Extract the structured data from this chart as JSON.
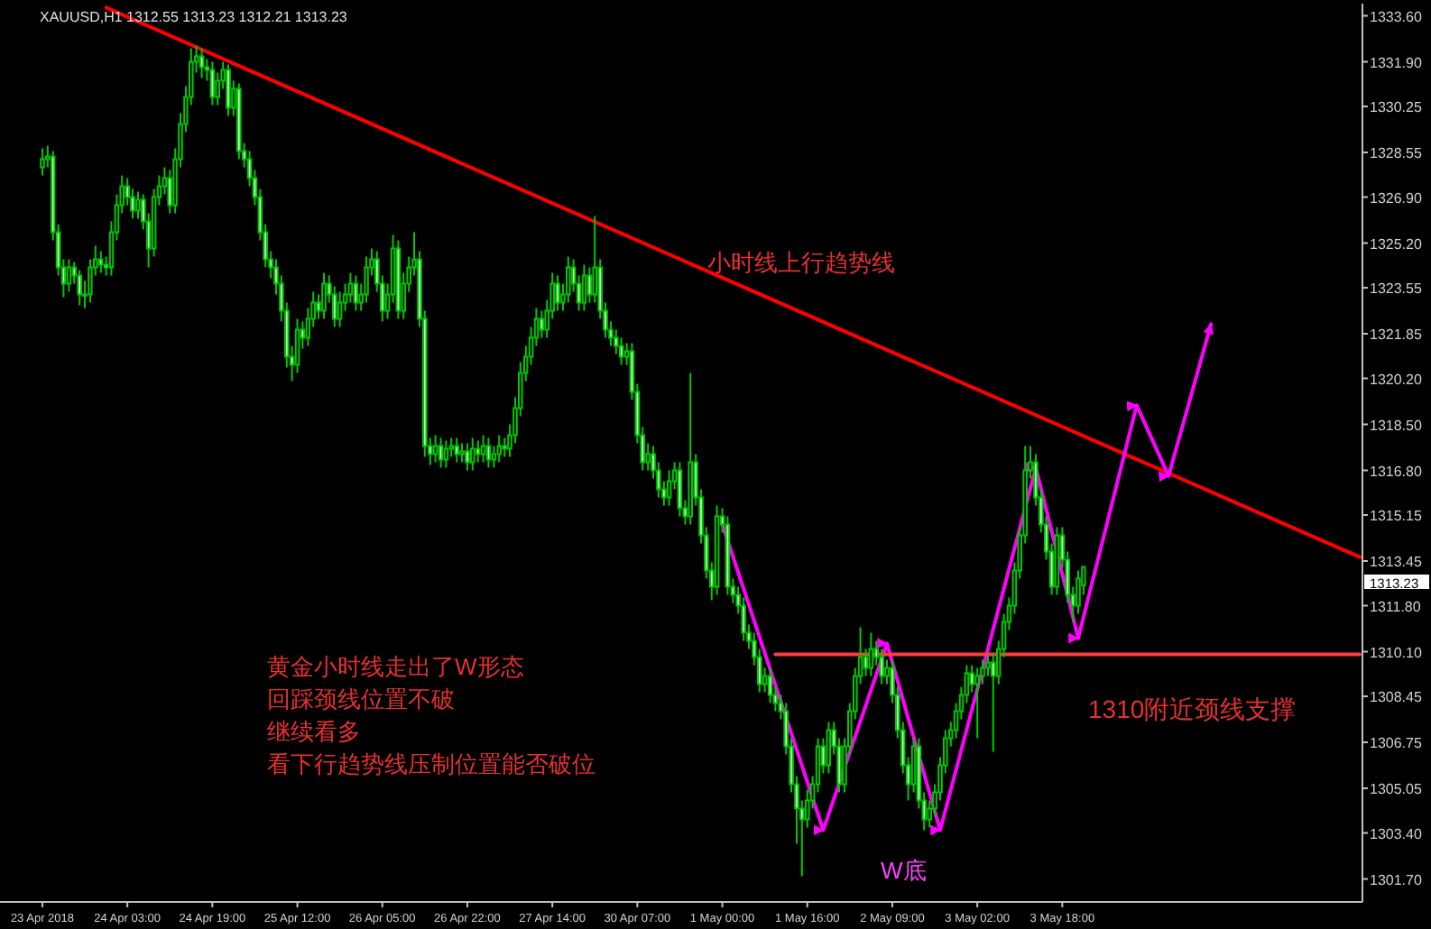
{
  "chart_data": {
    "type": "candlestick",
    "title": "XAUUSD,H1  1312.55 1313.23 1312.21 1313.23",
    "categories": [
      "23 Apr 2018",
      null,
      null,
      null,
      null,
      null,
      null,
      null,
      null,
      null,
      null,
      null,
      null,
      null,
      null,
      null,
      "24 Apr 03:00",
      null,
      null,
      null,
      null,
      null,
      null,
      null,
      null,
      null,
      null,
      null,
      null,
      null,
      null,
      null,
      "24 Apr 19:00",
      null,
      null,
      null,
      null,
      null,
      null,
      null,
      null,
      null,
      null,
      null,
      null,
      null,
      null,
      null,
      "25 Apr 12:00",
      null,
      null,
      null,
      null,
      null,
      null,
      null,
      null,
      null,
      null,
      null,
      null,
      null,
      null,
      null,
      "26 Apr 05:00",
      null,
      null,
      null,
      null,
      null,
      null,
      null,
      null,
      null,
      null,
      null,
      null,
      null,
      null,
      null,
      "26 Apr 22:00",
      null,
      null,
      null,
      null,
      null,
      null,
      null,
      null,
      null,
      null,
      null,
      null,
      null,
      null,
      null,
      "27 Apr 14:00",
      null,
      null,
      null,
      null,
      null,
      null,
      null,
      null,
      null,
      null,
      null,
      null,
      null,
      null,
      null,
      "30 Apr 07:00",
      null,
      null,
      null,
      null,
      null,
      null,
      null,
      null,
      null,
      null,
      null,
      null,
      null,
      null,
      null,
      "1 May 00:00",
      null,
      null,
      null,
      null,
      null,
      null,
      null,
      null,
      null,
      null,
      null,
      null,
      null,
      null,
      null,
      "1 May 16:00",
      null,
      null,
      null,
      null,
      null,
      null,
      null,
      null,
      null,
      null,
      null,
      null,
      null,
      null,
      null,
      "2 May 09:00",
      null,
      null,
      null,
      null,
      null,
      null,
      null,
      null,
      null,
      null,
      null,
      null,
      null,
      null,
      null,
      "3 May 02:00",
      null,
      null,
      null,
      null,
      null,
      null,
      null,
      null,
      null,
      null,
      null,
      null,
      null,
      null,
      null,
      "3 May 18:00",
      null,
      null,
      null,
      null,
      null,
      null,
      null,
      null,
      null,
      null,
      null,
      null,
      null,
      null,
      null,
      null,
      null,
      null,
      null,
      null,
      null,
      null,
      null,
      null,
      null,
      null,
      null,
      null,
      null,
      null,
      null,
      null,
      null,
      null,
      null,
      null,
      null,
      null,
      null,
      null,
      null,
      null,
      null,
      null,
      null,
      null,
      null,
      null,
      null,
      null,
      null,
      null,
      null,
      null,
      null,
      null
    ],
    "ylim": [
      1300.85,
      1334.05
    ],
    "yticks": [
      {
        "value": 1333.6,
        "label": "1333.60"
      },
      {
        "value": 1331.9,
        "label": "1331.90"
      },
      {
        "value": 1330.25,
        "label": "1330.25"
      },
      {
        "value": 1328.55,
        "label": "1328.55"
      },
      {
        "value": 1326.9,
        "label": "1326.90"
      },
      {
        "value": 1325.2,
        "label": "1325.20"
      },
      {
        "value": 1323.55,
        "label": "1323.55"
      },
      {
        "value": 1321.85,
        "label": "1321.85"
      },
      {
        "value": 1320.2,
        "label": "1320.20"
      },
      {
        "value": 1318.5,
        "label": "1318.50"
      },
      {
        "value": 1316.8,
        "label": "1316.80"
      },
      {
        "value": 1315.15,
        "label": "1315.15"
      },
      {
        "value": 1313.45,
        "label": "1313.45"
      },
      {
        "value": 1311.8,
        "label": "1311.80"
      },
      {
        "value": 1310.1,
        "label": "1310.10"
      },
      {
        "value": 1308.45,
        "label": "1308.45"
      },
      {
        "value": 1306.75,
        "label": "1306.75"
      },
      {
        "value": 1305.05,
        "label": "1305.05"
      },
      {
        "value": 1303.4,
        "label": "1303.40"
      },
      {
        "value": 1301.7,
        "label": "1301.70"
      }
    ],
    "ohlc": [
      [
        1328.0,
        1328.7,
        1327.7,
        1328.3
      ],
      [
        1328.3,
        1328.8,
        1328.0,
        1328.4
      ],
      [
        1328.4,
        1328.6,
        1325.3,
        1325.6
      ],
      [
        1325.6,
        1325.9,
        1324.0,
        1324.3
      ],
      [
        1324.3,
        1324.6,
        1323.2,
        1323.7
      ],
      [
        1323.7,
        1324.6,
        1323.4,
        1324.3
      ],
      [
        1324.3,
        1324.5,
        1323.7,
        1324.0
      ],
      [
        1324.0,
        1324.2,
        1322.9,
        1323.3
      ],
      [
        1323.3,
        1323.8,
        1322.8,
        1323.3
      ],
      [
        1323.3,
        1324.6,
        1323.0,
        1324.3
      ],
      [
        1324.3,
        1325.1,
        1324.0,
        1324.6
      ],
      [
        1324.6,
        1324.9,
        1324.1,
        1324.4
      ],
      [
        1324.4,
        1324.7,
        1324.0,
        1324.3
      ],
      [
        1324.3,
        1326.0,
        1324.0,
        1325.6
      ],
      [
        1325.6,
        1327.0,
        1325.3,
        1326.6
      ],
      [
        1326.6,
        1327.7,
        1326.3,
        1327.3
      ],
      [
        1327.3,
        1327.6,
        1326.6,
        1326.9
      ],
      [
        1326.9,
        1327.2,
        1326.1,
        1326.4
      ],
      [
        1326.4,
        1327.1,
        1326.1,
        1326.8
      ],
      [
        1326.8,
        1327.0,
        1325.7,
        1326.0
      ],
      [
        1326.0,
        1326.3,
        1324.3,
        1325.0
      ],
      [
        1325.0,
        1327.2,
        1324.7,
        1326.9
      ],
      [
        1326.9,
        1327.7,
        1326.6,
        1327.3
      ],
      [
        1327.3,
        1328.0,
        1327.0,
        1327.6
      ],
      [
        1327.6,
        1327.9,
        1326.3,
        1326.6
      ],
      [
        1326.6,
        1328.7,
        1326.3,
        1328.3
      ],
      [
        1328.3,
        1330.0,
        1328.0,
        1329.6
      ],
      [
        1329.6,
        1331.0,
        1329.3,
        1330.6
      ],
      [
        1330.6,
        1332.4,
        1330.3,
        1331.9
      ],
      [
        1331.9,
        1332.5,
        1331.5,
        1332.1
      ],
      [
        1332.1,
        1332.4,
        1331.3,
        1331.7
      ],
      [
        1331.7,
        1332.0,
        1331.2,
        1331.6
      ],
      [
        1331.6,
        1331.9,
        1330.3,
        1330.6
      ],
      [
        1330.6,
        1331.5,
        1330.3,
        1331.2
      ],
      [
        1331.2,
        1331.9,
        1330.9,
        1331.6
      ],
      [
        1331.6,
        1331.8,
        1329.9,
        1330.2
      ],
      [
        1330.2,
        1331.2,
        1329.9,
        1330.9
      ],
      [
        1330.9,
        1331.1,
        1328.3,
        1328.6
      ],
      [
        1328.6,
        1328.9,
        1328.0,
        1328.3
      ],
      [
        1328.3,
        1328.6,
        1327.3,
        1327.6
      ],
      [
        1327.6,
        1327.9,
        1326.6,
        1326.9
      ],
      [
        1326.9,
        1327.2,
        1325.3,
        1325.6
      ],
      [
        1325.6,
        1325.9,
        1324.3,
        1324.6
      ],
      [
        1324.6,
        1324.9,
        1323.9,
        1324.3
      ],
      [
        1324.3,
        1324.6,
        1323.3,
        1323.7
      ],
      [
        1323.7,
        1324.0,
        1322.3,
        1322.7
      ],
      [
        1322.7,
        1323.0,
        1320.6,
        1321.0
      ],
      [
        1321.0,
        1321.4,
        1320.1,
        1320.7
      ],
      [
        1320.7,
        1322.4,
        1320.4,
        1322.0
      ],
      [
        1322.0,
        1322.3,
        1321.3,
        1321.7
      ],
      [
        1321.7,
        1322.8,
        1321.4,
        1322.4
      ],
      [
        1322.4,
        1323.4,
        1322.1,
        1323.0
      ],
      [
        1323.0,
        1323.3,
        1322.4,
        1322.7
      ],
      [
        1322.7,
        1324.1,
        1322.4,
        1323.7
      ],
      [
        1323.7,
        1324.0,
        1323.0,
        1323.3
      ],
      [
        1323.3,
        1323.6,
        1322.1,
        1322.4
      ],
      [
        1322.4,
        1323.4,
        1322.1,
        1323.0
      ],
      [
        1323.0,
        1323.7,
        1322.7,
        1323.3
      ],
      [
        1323.3,
        1324.1,
        1323.0,
        1323.7
      ],
      [
        1323.7,
        1324.0,
        1322.7,
        1323.0
      ],
      [
        1323.0,
        1323.7,
        1322.7,
        1323.3
      ],
      [
        1323.3,
        1324.7,
        1323.0,
        1324.3
      ],
      [
        1324.3,
        1325.0,
        1324.0,
        1324.6
      ],
      [
        1324.6,
        1324.9,
        1323.4,
        1323.7
      ],
      [
        1323.7,
        1324.0,
        1322.3,
        1322.7
      ],
      [
        1322.7,
        1323.7,
        1322.4,
        1323.3
      ],
      [
        1323.3,
        1325.5,
        1323.0,
        1325.0
      ],
      [
        1325.0,
        1325.3,
        1322.4,
        1322.7
      ],
      [
        1322.7,
        1324.1,
        1322.4,
        1323.7
      ],
      [
        1323.7,
        1324.7,
        1323.4,
        1324.3
      ],
      [
        1324.3,
        1325.6,
        1324.0,
        1324.6
      ],
      [
        1324.6,
        1324.9,
        1322.1,
        1322.4
      ],
      [
        1322.4,
        1322.7,
        1317.3,
        1317.7
      ],
      [
        1317.7,
        1318.0,
        1317.0,
        1317.4
      ],
      [
        1317.4,
        1318.1,
        1317.1,
        1317.7
      ],
      [
        1317.7,
        1318.0,
        1316.9,
        1317.2
      ],
      [
        1317.2,
        1317.9,
        1316.9,
        1317.6
      ],
      [
        1317.6,
        1318.0,
        1317.3,
        1317.7
      ],
      [
        1317.7,
        1318.0,
        1317.1,
        1317.4
      ],
      [
        1317.4,
        1317.8,
        1317.1,
        1317.5
      ],
      [
        1317.5,
        1317.8,
        1316.8,
        1317.1
      ],
      [
        1317.1,
        1318.0,
        1316.8,
        1317.6
      ],
      [
        1317.6,
        1317.9,
        1317.1,
        1317.4
      ],
      [
        1317.4,
        1318.1,
        1317.1,
        1317.7
      ],
      [
        1317.7,
        1318.0,
        1316.9,
        1317.2
      ],
      [
        1317.2,
        1317.7,
        1316.9,
        1317.4
      ],
      [
        1317.4,
        1318.1,
        1317.1,
        1317.7
      ],
      [
        1317.7,
        1318.0,
        1317.3,
        1317.6
      ],
      [
        1317.6,
        1318.5,
        1317.3,
        1318.1
      ],
      [
        1318.1,
        1319.5,
        1317.8,
        1319.1
      ],
      [
        1319.1,
        1320.8,
        1318.8,
        1320.4
      ],
      [
        1320.4,
        1321.4,
        1320.1,
        1321.0
      ],
      [
        1321.0,
        1322.1,
        1320.7,
        1321.7
      ],
      [
        1321.7,
        1322.8,
        1321.4,
        1322.4
      ],
      [
        1322.4,
        1322.7,
        1321.7,
        1322.0
      ],
      [
        1322.0,
        1323.1,
        1321.7,
        1322.7
      ],
      [
        1322.7,
        1324.1,
        1322.4,
        1323.7
      ],
      [
        1323.7,
        1324.0,
        1322.7,
        1323.0
      ],
      [
        1323.0,
        1323.7,
        1322.7,
        1323.3
      ],
      [
        1323.3,
        1324.7,
        1323.0,
        1324.3
      ],
      [
        1324.3,
        1324.6,
        1323.4,
        1323.7
      ],
      [
        1323.7,
        1324.0,
        1322.7,
        1323.0
      ],
      [
        1323.0,
        1324.4,
        1322.7,
        1324.0
      ],
      [
        1324.0,
        1324.3,
        1323.0,
        1323.3
      ],
      [
        1323.3,
        1326.2,
        1323.0,
        1324.3
      ],
      [
        1324.3,
        1324.6,
        1322.4,
        1322.7
      ],
      [
        1322.7,
        1323.0,
        1321.7,
        1322.0
      ],
      [
        1322.0,
        1322.3,
        1321.4,
        1321.7
      ],
      [
        1321.7,
        1322.0,
        1321.1,
        1321.4
      ],
      [
        1321.4,
        1321.7,
        1320.7,
        1321.0
      ],
      [
        1321.0,
        1321.5,
        1320.7,
        1321.2
      ],
      [
        1321.2,
        1321.5,
        1319.4,
        1319.7
      ],
      [
        1319.7,
        1320.0,
        1317.8,
        1318.1
      ],
      [
        1318.1,
        1318.4,
        1316.8,
        1317.1
      ],
      [
        1317.1,
        1317.8,
        1316.8,
        1317.4
      ],
      [
        1317.4,
        1317.7,
        1316.5,
        1316.8
      ],
      [
        1316.8,
        1317.1,
        1315.8,
        1316.1
      ],
      [
        1316.1,
        1316.4,
        1315.5,
        1315.8
      ],
      [
        1315.8,
        1316.8,
        1315.5,
        1316.4
      ],
      [
        1316.4,
        1317.1,
        1316.1,
        1316.8
      ],
      [
        1316.8,
        1317.1,
        1315.1,
        1315.4
      ],
      [
        1315.4,
        1315.7,
        1314.8,
        1315.1
      ],
      [
        1315.1,
        1320.4,
        1314.8,
        1317.1
      ],
      [
        1317.1,
        1317.4,
        1315.5,
        1315.8
      ],
      [
        1315.8,
        1316.1,
        1314.1,
        1314.4
      ],
      [
        1314.4,
        1314.7,
        1312.8,
        1313.1
      ],
      [
        1313.1,
        1313.4,
        1312.0,
        1312.5
      ],
      [
        1312.5,
        1315.5,
        1312.2,
        1315.1
      ],
      [
        1315.1,
        1315.4,
        1314.5,
        1314.8
      ],
      [
        1314.8,
        1315.1,
        1312.2,
        1312.5
      ],
      [
        1312.5,
        1312.8,
        1311.9,
        1312.2
      ],
      [
        1312.2,
        1312.5,
        1311.5,
        1311.8
      ],
      [
        1311.8,
        1312.1,
        1310.5,
        1310.8
      ],
      [
        1310.8,
        1311.1,
        1310.2,
        1310.5
      ],
      [
        1310.5,
        1310.8,
        1309.6,
        1309.9
      ],
      [
        1309.9,
        1310.2,
        1308.6,
        1308.9
      ],
      [
        1308.9,
        1309.5,
        1308.6,
        1309.2
      ],
      [
        1309.2,
        1309.5,
        1308.2,
        1308.5
      ],
      [
        1308.5,
        1308.8,
        1307.9,
        1308.2
      ],
      [
        1308.2,
        1308.5,
        1307.6,
        1307.9
      ],
      [
        1307.9,
        1308.2,
        1306.3,
        1306.6
      ],
      [
        1306.6,
        1306.9,
        1304.9,
        1305.2
      ],
      [
        1305.2,
        1305.5,
        1303.0,
        1304.3
      ],
      [
        1304.3,
        1304.6,
        1301.8,
        1303.9
      ],
      [
        1303.9,
        1305.0,
        1303.6,
        1304.6
      ],
      [
        1304.6,
        1305.5,
        1304.3,
        1305.2
      ],
      [
        1305.2,
        1306.9,
        1304.9,
        1306.6
      ],
      [
        1306.6,
        1306.9,
        1305.6,
        1305.9
      ],
      [
        1305.9,
        1307.5,
        1305.6,
        1307.2
      ],
      [
        1307.2,
        1307.5,
        1306.3,
        1306.6
      ],
      [
        1306.6,
        1306.9,
        1304.9,
        1305.2
      ],
      [
        1305.2,
        1306.9,
        1304.9,
        1306.6
      ],
      [
        1306.6,
        1308.2,
        1306.3,
        1307.9
      ],
      [
        1307.9,
        1309.5,
        1307.6,
        1309.2
      ],
      [
        1309.2,
        1311.0,
        1308.9,
        1309.9
      ],
      [
        1309.9,
        1310.2,
        1309.2,
        1309.5
      ],
      [
        1309.5,
        1310.8,
        1309.2,
        1310.2
      ],
      [
        1310.2,
        1310.5,
        1309.6,
        1309.9
      ],
      [
        1309.9,
        1310.2,
        1308.9,
        1309.2
      ],
      [
        1309.2,
        1309.8,
        1308.9,
        1309.5
      ],
      [
        1309.5,
        1309.8,
        1308.2,
        1308.5
      ],
      [
        1308.5,
        1308.8,
        1306.9,
        1307.2
      ],
      [
        1307.2,
        1307.5,
        1305.6,
        1305.9
      ],
      [
        1305.9,
        1306.2,
        1304.6,
        1305.2
      ],
      [
        1305.2,
        1306.9,
        1304.9,
        1306.6
      ],
      [
        1306.6,
        1306.9,
        1304.3,
        1304.6
      ],
      [
        1304.6,
        1304.9,
        1303.5,
        1303.9
      ],
      [
        1303.9,
        1304.6,
        1303.6,
        1304.3
      ],
      [
        1304.3,
        1305.2,
        1304.0,
        1304.9
      ],
      [
        1304.9,
        1306.2,
        1304.6,
        1305.9
      ],
      [
        1305.9,
        1307.2,
        1305.6,
        1306.9
      ],
      [
        1306.9,
        1307.5,
        1306.6,
        1307.2
      ],
      [
        1307.2,
        1308.2,
        1306.9,
        1307.9
      ],
      [
        1307.9,
        1308.8,
        1307.6,
        1308.5
      ],
      [
        1308.5,
        1309.6,
        1308.2,
        1309.3
      ],
      [
        1309.3,
        1309.6,
        1308.6,
        1308.9
      ],
      [
        1308.9,
        1309.5,
        1306.9,
        1309.2
      ],
      [
        1309.2,
        1309.8,
        1308.9,
        1309.5
      ],
      [
        1309.5,
        1310.0,
        1309.2,
        1309.7
      ],
      [
        1309.7,
        1310.0,
        1306.4,
        1309.2
      ],
      [
        1309.2,
        1310.5,
        1308.9,
        1310.2
      ],
      [
        1310.2,
        1311.5,
        1309.9,
        1311.2
      ],
      [
        1311.2,
        1312.1,
        1310.9,
        1311.8
      ],
      [
        1311.8,
        1313.4,
        1311.5,
        1313.1
      ],
      [
        1313.1,
        1314.7,
        1312.8,
        1314.4
      ],
      [
        1314.4,
        1317.7,
        1314.1,
        1316.8
      ],
      [
        1316.8,
        1317.7,
        1316.5,
        1317.1
      ],
      [
        1317.1,
        1317.4,
        1315.5,
        1315.8
      ],
      [
        1315.8,
        1316.1,
        1314.5,
        1314.8
      ],
      [
        1314.8,
        1315.1,
        1313.5,
        1313.8
      ],
      [
        1313.8,
        1314.1,
        1312.2,
        1312.5
      ],
      [
        1312.5,
        1314.7,
        1312.2,
        1314.4
      ],
      [
        1314.4,
        1314.7,
        1313.2,
        1313.5
      ],
      [
        1313.5,
        1313.8,
        1311.9,
        1312.2
      ],
      [
        1312.2,
        1312.5,
        1311.2,
        1311.8
      ],
      [
        1311.8,
        1313.1,
        1311.5,
        1312.8
      ],
      [
        1312.55,
        1313.23,
        1312.21,
        1313.23
      ],
      null,
      null,
      null,
      null,
      null,
      null,
      null,
      null,
      null,
      null,
      null,
      null,
      null,
      null,
      null,
      null,
      null,
      null,
      null,
      null,
      null,
      null,
      null,
      null,
      null,
      null,
      null,
      null,
      null,
      null,
      null,
      null,
      null,
      null,
      null,
      null,
      null,
      null,
      null,
      null,
      null,
      null,
      null,
      null,
      null,
      null,
      null,
      null,
      null,
      null,
      null,
      null
    ],
    "series": [
      {
        "type": "line",
        "color": "#ff0000",
        "values": [
          null,
          null,
          null,
          null,
          null,
          null,
          null,
          null,
          null,
          null,
          null,
          null,
          1333.9,
          null,
          null,
          null,
          null,
          null,
          null,
          null,
          null,
          null,
          null,
          null,
          null,
          null,
          null,
          null,
          null,
          null,
          null,
          null,
          null,
          null,
          null,
          null,
          null,
          null,
          null,
          null,
          null,
          null,
          null,
          null,
          null,
          null,
          null,
          null,
          null,
          null,
          null,
          null,
          null,
          null,
          null,
          null,
          null,
          null,
          null,
          null,
          null,
          null,
          null,
          null,
          null,
          null,
          null,
          null,
          null,
          null,
          null,
          null,
          null,
          null,
          null,
          null,
          null,
          null,
          null,
          null,
          null,
          null,
          null,
          null,
          null,
          null,
          null,
          null,
          null,
          null,
          null,
          null,
          null,
          null,
          null,
          null,
          null,
          null,
          null,
          null,
          null,
          null,
          null,
          null,
          null,
          null,
          null,
          null,
          null,
          null,
          null,
          null,
          null,
          null,
          null,
          null,
          null,
          null,
          null,
          null,
          null,
          null,
          null,
          null,
          null,
          null,
          null,
          null,
          null,
          null,
          null,
          null,
          null,
          null,
          null,
          null,
          null,
          null,
          null,
          null,
          null,
          null,
          null,
          null,
          null,
          null,
          null,
          null,
          null,
          null,
          null,
          null,
          null,
          null,
          null,
          null,
          null,
          null,
          null,
          null,
          null,
          null,
          null,
          null,
          null,
          null,
          null,
          null,
          null,
          null,
          null,
          null,
          null,
          null,
          null,
          null,
          null,
          null,
          null,
          null,
          null,
          null,
          null,
          null,
          null,
          null,
          null,
          null,
          null,
          null,
          null,
          null,
          null,
          null,
          null,
          null,
          null,
          null,
          null,
          null,
          null,
          null,
          null,
          null,
          null,
          null,
          null,
          null,
          null,
          null,
          null,
          null,
          null,
          null,
          null,
          null,
          null,
          null,
          null,
          null,
          null,
          null,
          null,
          null,
          null,
          null,
          null,
          null,
          null,
          null,
          null,
          null,
          null,
          null,
          null,
          null,
          null,
          null,
          null,
          null,
          null,
          null,
          null,
          null,
          null,
          null,
          null,
          null,
          1313.6
        ]
      },
      {
        "type": "line",
        "color": "#ff00ff",
        "values": [
          null,
          null,
          null,
          null,
          null,
          null,
          null,
          null,
          null,
          null,
          null,
          null,
          null,
          null,
          null,
          null,
          null,
          null,
          null,
          null,
          null,
          null,
          null,
          null,
          null,
          null,
          null,
          null,
          null,
          null,
          null,
          null,
          null,
          null,
          null,
          null,
          null,
          null,
          null,
          null,
          null,
          null,
          null,
          null,
          null,
          null,
          null,
          null,
          null,
          null,
          null,
          null,
          null,
          null,
          null,
          null,
          null,
          null,
          null,
          null,
          null,
          null,
          null,
          null,
          null,
          null,
          null,
          null,
          null,
          null,
          null,
          null,
          null,
          null,
          null,
          null,
          null,
          null,
          null,
          null,
          null,
          null,
          null,
          null,
          null,
          null,
          null,
          null,
          null,
          null,
          null,
          null,
          null,
          null,
          null,
          null,
          null,
          null,
          null,
          null,
          null,
          null,
          null,
          null,
          null,
          null,
          null,
          null,
          null,
          null,
          null,
          null,
          null,
          null,
          null,
          null,
          null,
          null,
          null,
          null,
          null,
          null,
          null,
          null,
          null,
          null,
          null,
          null,
          1314.8,
          null,
          null,
          null,
          null,
          null,
          null,
          null,
          null,
          null,
          null,
          null,
          null,
          null,
          null,
          null,
          null,
          null,
          null,
          1303.5,
          null,
          null,
          null,
          null,
          null,
          null,
          null,
          null,
          null,
          null,
          null,
          1310.4,
          null,
          null,
          null,
          null,
          null,
          null,
          null,
          null,
          null,
          1303.5,
          null,
          null,
          null,
          null,
          null,
          null,
          null,
          null,
          null,
          null,
          null,
          null,
          null,
          null,
          null,
          null,
          null,
          1316.9,
          null,
          null,
          null,
          null,
          null,
          null,
          null,
          1310.6,
          null,
          null,
          null,
          null,
          null,
          null,
          null,
          null,
          null,
          null,
          1319.2,
          null,
          null,
          null,
          null,
          null,
          1316.6,
          null,
          null,
          null,
          null,
          null,
          null,
          null,
          1322.2,
          null,
          null,
          null,
          null,
          null,
          null,
          null,
          null,
          null,
          null,
          null,
          null,
          null,
          null,
          null,
          null,
          null,
          null,
          null,
          null,
          null,
          null,
          null,
          null,
          null,
          null,
          null,
          null
        ]
      },
      {
        "type": "line",
        "color": "#ff3b3b",
        "values": [
          null,
          null,
          null,
          null,
          null,
          null,
          null,
          null,
          null,
          null,
          null,
          null,
          null,
          null,
          null,
          null,
          null,
          null,
          null,
          null,
          null,
          null,
          null,
          null,
          null,
          null,
          null,
          null,
          null,
          null,
          null,
          null,
          null,
          null,
          null,
          null,
          null,
          null,
          null,
          null,
          null,
          null,
          null,
          null,
          null,
          null,
          null,
          null,
          null,
          null,
          null,
          null,
          null,
          null,
          null,
          null,
          null,
          null,
          null,
          null,
          null,
          null,
          null,
          null,
          null,
          null,
          null,
          null,
          null,
          null,
          null,
          null,
          null,
          null,
          null,
          null,
          null,
          null,
          null,
          null,
          null,
          null,
          null,
          null,
          null,
          null,
          null,
          null,
          null,
          null,
          null,
          null,
          null,
          null,
          null,
          null,
          null,
          null,
          null,
          null,
          null,
          null,
          null,
          null,
          null,
          null,
          null,
          null,
          null,
          null,
          null,
          null,
          null,
          null,
          null,
          null,
          null,
          null,
          null,
          null,
          null,
          null,
          null,
          null,
          null,
          null,
          null,
          null,
          null,
          null,
          null,
          null,
          null,
          null,
          null,
          null,
          null,
          null,
          1310.0,
          null,
          null,
          null,
          null,
          null,
          null,
          null,
          null,
          null,
          null,
          null,
          null,
          null,
          null,
          null,
          null,
          null,
          null,
          null,
          null,
          null,
          null,
          null,
          null,
          null,
          null,
          null,
          null,
          null,
          null,
          null,
          null,
          null,
          null,
          null,
          null,
          null,
          null,
          null,
          null,
          null,
          null,
          null,
          null,
          null,
          null,
          null,
          null,
          null,
          null,
          null,
          null,
          null,
          null,
          null,
          null,
          null,
          null,
          null,
          null,
          null,
          null,
          null,
          null,
          null,
          null,
          null,
          null,
          null,
          null,
          null,
          null,
          null,
          null,
          null,
          null,
          null,
          null,
          null,
          null,
          null,
          null,
          null,
          null,
          null,
          null,
          null,
          null,
          null,
          null,
          null,
          null,
          null,
          null,
          null,
          null,
          null,
          null,
          null,
          null,
          null,
          null,
          null,
          null,
          null,
          null,
          null,
          null,
          null,
          1310.0
        ]
      }
    ],
    "annotations": [
      "小时线上行趋势线",
      "W底",
      "1310附近颈线支撑",
      "黄金小时线走出了W形态",
      "回踩颈线位置不破",
      "继续看多",
      "看下行趋势线压制位置能否破位",
      "1313.23"
    ]
  }
}
